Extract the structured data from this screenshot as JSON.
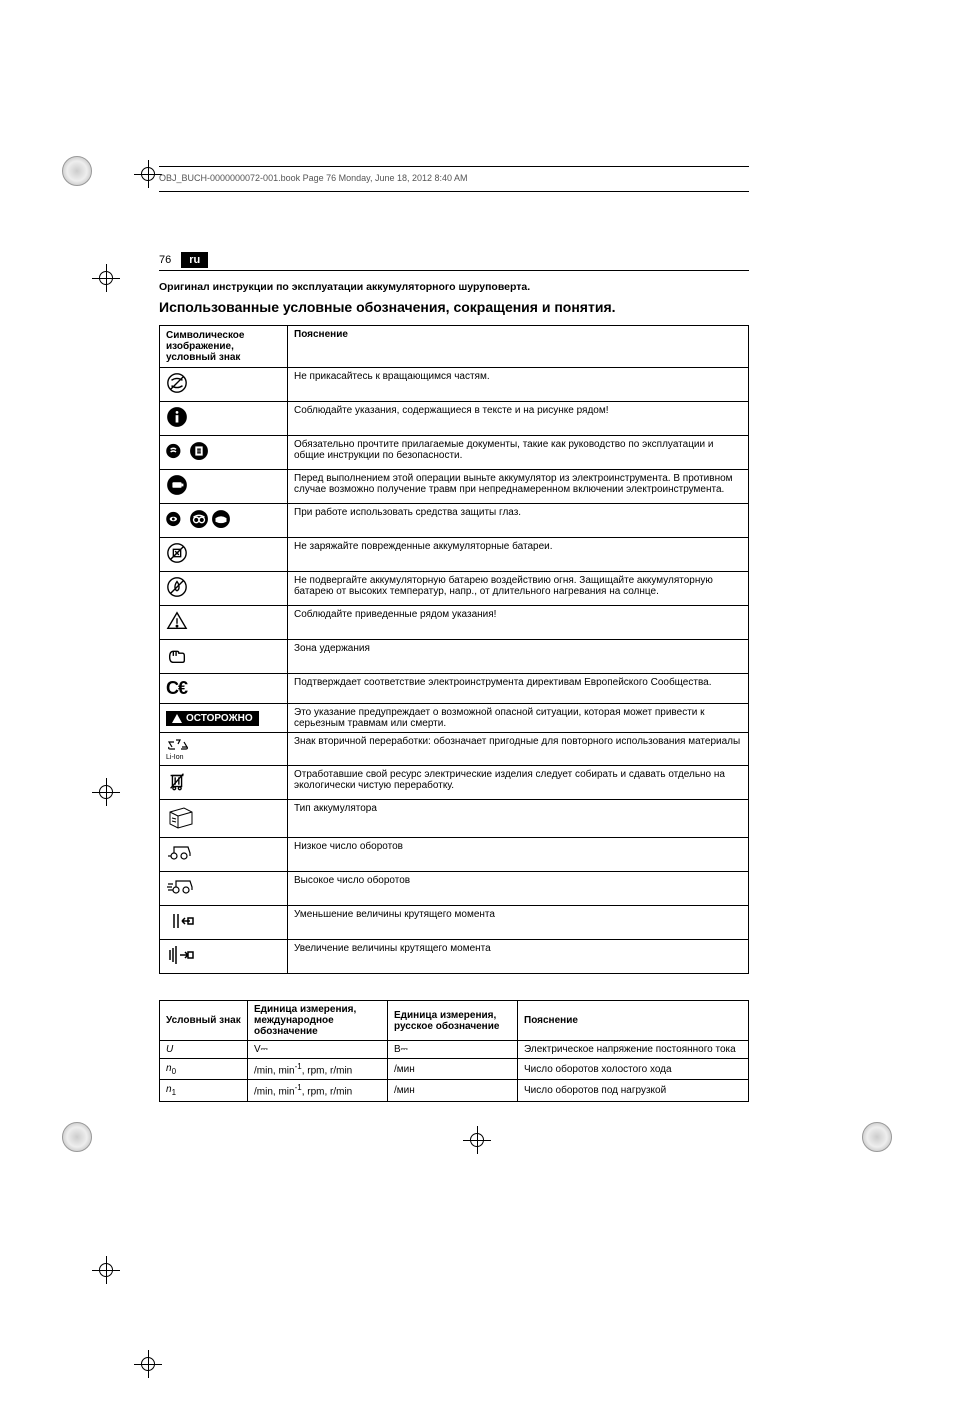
{
  "header": {
    "filename": "OBJ_BUCH-0000000072-001.book  Page 76  Monday, June 18, 2012  8:40 AM"
  },
  "page": {
    "number": "76",
    "lang": "ru",
    "subtitle": "Оригинал инструкции по эксплуатации аккумуляторного шуруповерта.",
    "section_title": "Использованные условные обозначения, сокращения и понятия."
  },
  "symbols_table": {
    "headers": [
      "Символическое изображение, условный знак",
      "Пояснение"
    ],
    "rows": [
      {
        "icon": "no-touch-rotating",
        "text": "Не прикасайтесь к вращающимся частям."
      },
      {
        "icon": "info",
        "text": "Соблюдайте указания, содержащиеся в тексте и на рисунке рядом!"
      },
      {
        "icon": "read-docs",
        "text": "Обязательно прочтите прилагаемые документы, такие как руководство по эксплуатации и общие инструкции по безопасности."
      },
      {
        "icon": "remove-battery",
        "text": "Перед выполнением этой операции выньте аккумулятор из электроинструмента. В противном случае возможно получение травм при непреднамеренном включении электроинструмента."
      },
      {
        "icon": "eye-protection",
        "text": "При работе использовать средства защиты глаз."
      },
      {
        "icon": "no-charge-damaged",
        "text": "Не заряжайте поврежденные аккумуляторные батареи."
      },
      {
        "icon": "no-fire",
        "text": "Не подвергайте аккумуляторную батарею воздействию огня. Защищайте аккумуляторную батарею от высоких температур, напр., от длительного нагревания на солнце."
      },
      {
        "icon": "warning-triangle",
        "text": "Соблюдайте приведенные рядом указания!"
      },
      {
        "icon": "grip-zone",
        "text": "Зона удержания"
      },
      {
        "icon": "ce-mark",
        "text": "Подтверждает соответствие электроинструмента директивам Европейского Сообщества."
      },
      {
        "icon": "caution",
        "text": "Это указание предупреждает о возможной опасной ситуации, которая может привести к серьезным травмам или смерти.",
        "badge": "ОСТОРОЖНО"
      },
      {
        "icon": "recycle",
        "text": "Знак вторичной переработки: обозначает пригодные для повторного использования материалы",
        "sub_label": "Li-Ion"
      },
      {
        "icon": "weee",
        "text": "Отработавшие свой ресурс электрические изделия следует собирать и сдавать отдельно на экологически чистую переработку."
      },
      {
        "icon": "battery-type",
        "text": "Тип аккумулятора"
      },
      {
        "icon": "low-speed",
        "text": "Низкое число оборотов"
      },
      {
        "icon": "high-speed",
        "text": "Высокое число оборотов"
      },
      {
        "icon": "torque-down",
        "text": "Уменьшение величины крутящего момента"
      },
      {
        "icon": "torque-up",
        "text": "Увеличение величины крутящего момента"
      }
    ]
  },
  "units_table": {
    "headers": [
      "Условный знак",
      "Единица измерения, международное обозначение",
      "Единица измерения, русское обозначение",
      "Пояснение"
    ],
    "rows": [
      {
        "sym": "U",
        "intl": "V⎓",
        "ru": "В⎓",
        "desc": "Электрическое напряжение постоянного тока"
      },
      {
        "sym": "n0",
        "intl": "/min, min-1, rpm, r/min",
        "ru": "/мин",
        "desc": "Число оборотов холостого хода"
      },
      {
        "sym": "n1",
        "intl": "/min, min-1, rpm, r/min",
        "ru": "/мин",
        "desc": "Число оборотов под нагрузкой"
      }
    ]
  }
}
